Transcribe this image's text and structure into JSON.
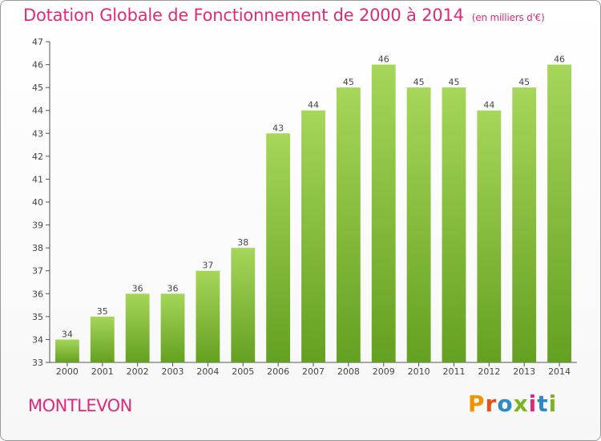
{
  "header": {
    "title": "Dotation Globale de Fonctionnement de 2000 à 2014",
    "subtitle": "(en milliers d'€)"
  },
  "place": "MONTLEVON",
  "logo": {
    "text": "Proxiti",
    "colors": [
      "#f39200",
      "#e94e1b",
      "#2e89c8",
      "#7ab51d",
      "#e0297a",
      "#2e89c8",
      "#7ab51d"
    ]
  },
  "colors": {
    "bar_top": "#a6d65a",
    "bar_bottom": "#64a021",
    "accent": "#e0297a",
    "grid": "#cccccc"
  },
  "chart_data": {
    "type": "bar",
    "categories": [
      "2000",
      "2001",
      "2002",
      "2003",
      "2004",
      "2005",
      "2006",
      "2007",
      "2008",
      "2009",
      "2010",
      "2011",
      "2012",
      "2013",
      "2014"
    ],
    "values": [
      34,
      35,
      36,
      36,
      37,
      38,
      43,
      44,
      45,
      46,
      45,
      45,
      44,
      45,
      46
    ],
    "ylim": [
      33,
      47
    ],
    "yticks": [
      33,
      34,
      35,
      36,
      37,
      38,
      39,
      40,
      41,
      42,
      43,
      44,
      45,
      46,
      47
    ],
    "title": "Dotation Globale de Fonctionnement de 2000 à 2014",
    "xlabel": "",
    "ylabel": "",
    "grid": false,
    "data_labels": true
  }
}
